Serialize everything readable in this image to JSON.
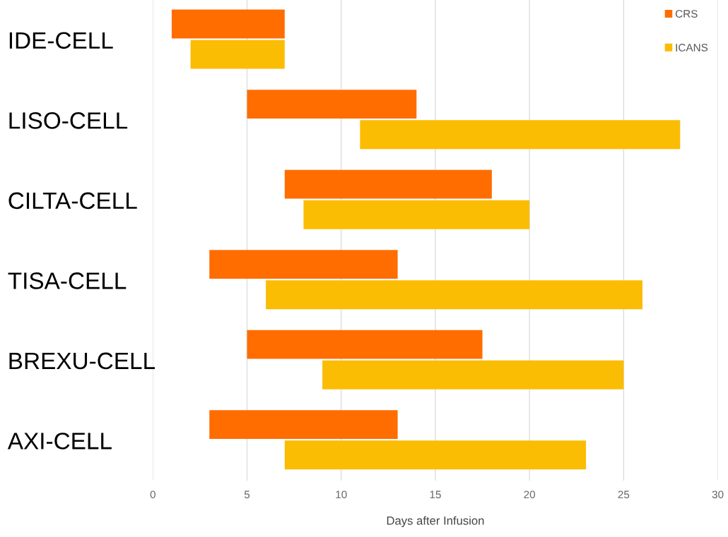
{
  "chart_data": {
    "type": "bar",
    "orientation": "horizontal",
    "xlabel": "Days after Infusion",
    "categories": [
      "IDE-CELL",
      "LISO-CELL",
      "CILTA-CELL",
      "TISA-CELL",
      "BREXU-CELL",
      "AXI-CELL"
    ],
    "series": [
      {
        "name": "CRS",
        "color": "#ff6d01",
        "base": [
          1,
          5,
          7,
          3,
          5,
          3
        ],
        "values": [
          6,
          9,
          11,
          10,
          12.5,
          10
        ]
      },
      {
        "name": "ICANS",
        "color": "#fbbc04",
        "base": [
          2,
          11,
          8,
          6,
          9,
          7
        ],
        "values": [
          5,
          17,
          12,
          20,
          16,
          16
        ]
      }
    ],
    "xlim": [
      0,
      30
    ],
    "xticks": [
      0,
      5,
      10,
      15,
      20,
      25,
      30
    ],
    "grid": "x",
    "legend": "top right"
  }
}
